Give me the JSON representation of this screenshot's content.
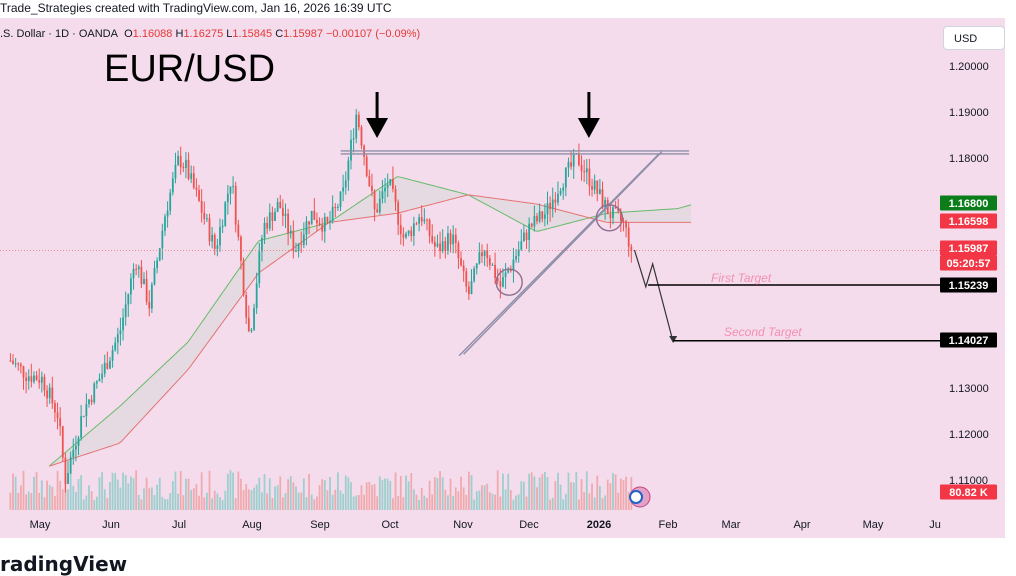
{
  "caption": "Trade_Strategies created with TradingView.com, Jan 16, 2026 16:39 UTC",
  "symbol": {
    "name": ".S. Dollar · 1D · OANDA",
    "open_label": "O",
    "open": "1.16088",
    "high_label": "H",
    "high": "1.16275",
    "low_label": "L",
    "low": "1.15845",
    "close_label": "C",
    "close": "1.15987",
    "change": "−0.00107 (−0.09%)"
  },
  "currency": "USD",
  "pair_title": "EUR/USD",
  "brand": "radingView",
  "colors": {
    "plot_bg": "#f4dcec",
    "up": "#26a69a",
    "down": "#ef5350",
    "cloud_green": "#a5d6a7",
    "cloud_red": "#ef9a9a",
    "cloud_gray_fill": "#d9d9d9",
    "channel": "#8e8ea8",
    "target_text": "#f48fb1",
    "black": "#000000",
    "tag_green": "#089981",
    "tag_red": "#f23645"
  },
  "price_tags": [
    {
      "label": "1.16800",
      "color": "#0b7d1a"
    },
    {
      "label": "1.16598",
      "color": "#f23645"
    },
    {
      "label": "1.15987",
      "color": "#f23645"
    },
    {
      "label": "05:20:57",
      "color": "#f23645"
    },
    {
      "label": "1.15239",
      "color": "#000000"
    },
    {
      "label": "1.14027",
      "color": "#000000"
    },
    {
      "label": "80.82 K",
      "color": "#f23645"
    }
  ],
  "annotations": {
    "first_target": "First Target",
    "second_target": "Second Target"
  },
  "chart_data": {
    "type": "line",
    "title": "EUR/USD",
    "xlabel": "",
    "ylabel": "",
    "x_ticks": [
      "May",
      "Jun",
      "Jul",
      "Aug",
      "Sep",
      "Oct",
      "Nov",
      "Dec",
      "2026",
      "Feb",
      "Mar",
      "Apr",
      "May",
      "Ju"
    ],
    "y_ticks": [
      "1.20000",
      "1.19000",
      "1.18000",
      "1.13000",
      "1.12000",
      "1.11000"
    ],
    "ylim": [
      1.108,
      1.205
    ],
    "grid": false,
    "price_path": [
      {
        "date": "2025-04-18",
        "price": 1.136
      },
      {
        "date": "2025-04-25",
        "price": 1.133
      },
      {
        "date": "2025-05-02",
        "price": 1.132
      },
      {
        "date": "2025-05-09",
        "price": 1.124
      },
      {
        "date": "2025-05-12",
        "price": 1.11
      },
      {
        "date": "2025-05-20",
        "price": 1.125
      },
      {
        "date": "2025-05-28",
        "price": 1.133
      },
      {
        "date": "2025-06-05",
        "price": 1.142
      },
      {
        "date": "2025-06-12",
        "price": 1.158
      },
      {
        "date": "2025-06-18",
        "price": 1.148
      },
      {
        "date": "2025-06-25",
        "price": 1.168
      },
      {
        "date": "2025-07-01",
        "price": 1.18
      },
      {
        "date": "2025-07-04",
        "price": 1.178
      },
      {
        "date": "2025-07-10",
        "price": 1.17
      },
      {
        "date": "2025-07-17",
        "price": 1.16
      },
      {
        "date": "2025-07-24",
        "price": 1.176
      },
      {
        "date": "2025-07-31",
        "price": 1.145
      },
      {
        "date": "2025-08-01",
        "price": 1.141
      },
      {
        "date": "2025-08-07",
        "price": 1.165
      },
      {
        "date": "2025-08-14",
        "price": 1.17
      },
      {
        "date": "2025-08-21",
        "price": 1.16
      },
      {
        "date": "2025-08-28",
        "price": 1.168
      },
      {
        "date": "2025-09-04",
        "price": 1.165
      },
      {
        "date": "2025-09-11",
        "price": 1.172
      },
      {
        "date": "2025-09-17",
        "price": 1.19
      },
      {
        "date": "2025-09-25",
        "price": 1.168
      },
      {
        "date": "2025-10-01",
        "price": 1.175
      },
      {
        "date": "2025-10-08",
        "price": 1.162
      },
      {
        "date": "2025-10-15",
        "price": 1.168
      },
      {
        "date": "2025-10-22",
        "price": 1.16
      },
      {
        "date": "2025-10-29",
        "price": 1.163
      },
      {
        "date": "2025-11-05",
        "price": 1.15
      },
      {
        "date": "2025-11-12",
        "price": 1.161
      },
      {
        "date": "2025-11-19",
        "price": 1.152
      },
      {
        "date": "2025-11-25",
        "price": 1.158
      },
      {
        "date": "2025-12-02",
        "price": 1.165
      },
      {
        "date": "2025-12-09",
        "price": 1.168
      },
      {
        "date": "2025-12-16",
        "price": 1.175
      },
      {
        "date": "2025-12-23",
        "price": 1.18
      },
      {
        "date": "2025-12-30",
        "price": 1.174
      },
      {
        "date": "2026-01-06",
        "price": 1.168
      },
      {
        "date": "2026-01-12",
        "price": 1.166
      },
      {
        "date": "2026-01-16",
        "price": 1.15987
      }
    ],
    "ichimoku_cloud": {
      "span_a": [
        {
          "date": "2025-05-05",
          "price": 1.113
        },
        {
          "date": "2025-06-05",
          "price": 1.126
        },
        {
          "date": "2025-07-05",
          "price": 1.14
        },
        {
          "date": "2025-08-05",
          "price": 1.162
        },
        {
          "date": "2025-09-05",
          "price": 1.166
        },
        {
          "date": "2025-10-05",
          "price": 1.176
        },
        {
          "date": "2025-11-05",
          "price": 1.172
        },
        {
          "date": "2025-12-05",
          "price": 1.164
        },
        {
          "date": "2026-01-05",
          "price": 1.168
        },
        {
          "date": "2026-02-05",
          "price": 1.169
        },
        {
          "date": "2026-02-12",
          "price": 1.17
        }
      ],
      "span_b": [
        {
          "date": "2025-05-05",
          "price": 1.113
        },
        {
          "date": "2025-06-05",
          "price": 1.118
        },
        {
          "date": "2025-07-05",
          "price": 1.134
        },
        {
          "date": "2025-08-05",
          "price": 1.155
        },
        {
          "date": "2025-09-05",
          "price": 1.166
        },
        {
          "date": "2025-10-05",
          "price": 1.168
        },
        {
          "date": "2025-11-05",
          "price": 1.172
        },
        {
          "date": "2025-12-05",
          "price": 1.17
        },
        {
          "date": "2026-01-05",
          "price": 1.166
        },
        {
          "date": "2026-02-05",
          "price": 1.166
        },
        {
          "date": "2026-02-12",
          "price": 1.166
        }
      ]
    },
    "horizontal_resistance": {
      "from": "2025-09-10",
      "to": "2026-02-10",
      "price": 1.1812
    },
    "rising_channel": [
      {
        "from": {
          "date": "2025-11-01",
          "price": 1.137
        },
        "to": {
          "date": "2026-01-28",
          "price": 1.181
        }
      },
      {
        "from": {
          "date": "2025-11-03",
          "price": 1.138
        },
        "to": {
          "date": "2026-01-29",
          "price": 1.182
        }
      }
    ],
    "projection_path": [
      {
        "date": "2026-01-17",
        "price": 1.16
      },
      {
        "date": "2026-01-22",
        "price": 1.152
      },
      {
        "date": "2026-01-25",
        "price": 1.157
      },
      {
        "date": "2026-02-03",
        "price": 1.14
      }
    ],
    "targets": [
      {
        "label": "First Target",
        "price": 1.15239,
        "from": "2026-01-23"
      },
      {
        "label": "Second Target",
        "price": 1.14027,
        "from": "2026-02-03"
      }
    ],
    "highlight_circles": [
      {
        "date": "2025-11-23",
        "price": 1.153
      },
      {
        "date": "2026-01-06",
        "price": 1.167
      }
    ],
    "down_arrows": [
      {
        "date": "2025-09-26",
        "price": 1.19
      },
      {
        "date": "2025-12-28",
        "price": 1.19
      }
    ],
    "current_price": 1.15987
  }
}
